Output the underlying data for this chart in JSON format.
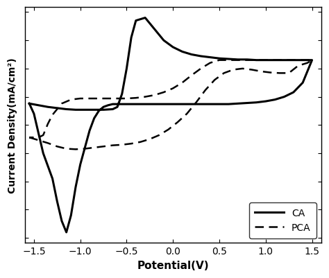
{
  "title": "",
  "xlabel": "Potential(V)",
  "ylabel": "Current Density(mA/cm²)",
  "xlim": [
    -1.6,
    1.6
  ],
  "x_ticks": [
    -1.5,
    -1.0,
    -0.5,
    0.0,
    0.5,
    1.0,
    1.5
  ],
  "legend": [
    "CA",
    "PCA"
  ],
  "line_color": "#000000",
  "background_color": "#ffffff",
  "ca_forward": {
    "x": [
      -1.55,
      -1.45,
      -1.35,
      -1.25,
      -1.15,
      -1.05,
      -0.95,
      -0.85,
      -0.75,
      -0.65,
      -0.6,
      -0.55,
      -0.5,
      -0.45,
      -0.4,
      -0.3,
      -0.2,
      -0.1,
      0.0,
      0.1,
      0.2,
      0.3,
      0.4,
      0.5,
      0.6,
      0.7,
      0.8,
      0.9,
      1.0,
      1.1,
      1.2,
      1.3,
      1.4,
      1.5
    ],
    "y": [
      0.38,
      0.35,
      0.32,
      0.3,
      0.28,
      0.27,
      0.27,
      0.27,
      0.27,
      0.28,
      0.32,
      0.55,
      1.0,
      1.55,
      1.85,
      1.9,
      1.7,
      1.5,
      1.38,
      1.3,
      1.25,
      1.22,
      1.2,
      1.18,
      1.17,
      1.16,
      1.16,
      1.15,
      1.15,
      1.15,
      1.15,
      1.15,
      1.15,
      1.15
    ]
  },
  "ca_backward": {
    "x": [
      1.5,
      1.4,
      1.3,
      1.2,
      1.1,
      1.0,
      0.9,
      0.8,
      0.7,
      0.6,
      0.5,
      0.4,
      0.3,
      0.2,
      0.1,
      0.0,
      -0.1,
      -0.2,
      -0.3,
      -0.4,
      -0.5,
      -0.6,
      -0.65,
      -0.7,
      -0.75,
      -0.8,
      -0.85,
      -0.9,
      -0.95,
      -1.0,
      -1.05,
      -1.1,
      -1.15,
      -1.2,
      -1.25,
      -1.3,
      -1.4,
      -1.5,
      -1.55
    ],
    "y": [
      1.15,
      0.75,
      0.58,
      0.5,
      0.45,
      0.42,
      0.4,
      0.39,
      0.38,
      0.37,
      0.37,
      0.37,
      0.37,
      0.37,
      0.37,
      0.37,
      0.37,
      0.37,
      0.37,
      0.37,
      0.37,
      0.37,
      0.37,
      0.35,
      0.32,
      0.25,
      0.12,
      -0.1,
      -0.4,
      -0.7,
      -1.1,
      -1.6,
      -1.9,
      -1.7,
      -1.35,
      -0.95,
      -0.5,
      0.2,
      0.38
    ]
  },
  "pca_forward": {
    "x": [
      -1.55,
      -1.45,
      -1.35,
      -1.25,
      -1.15,
      -1.05,
      -0.95,
      -0.85,
      -0.75,
      -0.65,
      -0.55,
      -0.45,
      -0.35,
      -0.25,
      -0.15,
      -0.05,
      0.05,
      0.15,
      0.25,
      0.35,
      0.45,
      0.55,
      0.65,
      0.75,
      0.85,
      0.95,
      1.05,
      1.15,
      1.25,
      1.35,
      1.45,
      1.5
    ],
    "y": [
      -0.22,
      -0.27,
      -0.32,
      -0.38,
      -0.42,
      -0.43,
      -0.42,
      -0.4,
      -0.38,
      -0.36,
      -0.35,
      -0.33,
      -0.3,
      -0.25,
      -0.18,
      -0.08,
      0.05,
      0.2,
      0.4,
      0.62,
      0.8,
      0.92,
      0.98,
      1.0,
      0.98,
      0.95,
      0.93,
      0.92,
      0.92,
      1.05,
      1.1,
      1.15
    ]
  },
  "pca_backward": {
    "x": [
      1.5,
      1.4,
      1.3,
      1.2,
      1.1,
      1.0,
      0.9,
      0.8,
      0.7,
      0.6,
      0.5,
      0.4,
      0.3,
      0.2,
      0.1,
      0.0,
      -0.1,
      -0.2,
      -0.3,
      -0.4,
      -0.5,
      -0.6,
      -0.7,
      -0.8,
      -0.9,
      -1.0,
      -1.1,
      -1.2,
      -1.3,
      -1.35,
      -1.4,
      -1.45,
      -1.5,
      -1.55
    ],
    "y": [
      1.15,
      1.15,
      1.15,
      1.15,
      1.15,
      1.15,
      1.15,
      1.15,
      1.15,
      1.15,
      1.15,
      1.1,
      1.0,
      0.88,
      0.75,
      0.65,
      0.58,
      0.53,
      0.5,
      0.48,
      0.47,
      0.47,
      0.47,
      0.47,
      0.47,
      0.47,
      0.45,
      0.38,
      0.18,
      0.02,
      -0.18,
      -0.22,
      -0.22,
      -0.22
    ]
  }
}
